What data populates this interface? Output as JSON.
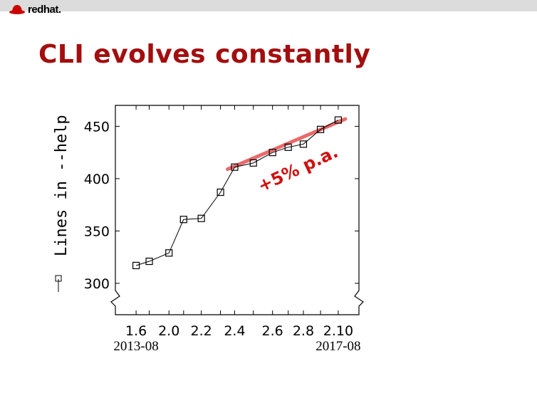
{
  "header": {
    "logo_text": "redhat."
  },
  "slide": {
    "title": "CLI evolves constantly"
  },
  "colors": {
    "title": "#a30e0e",
    "trend": "#e85a5a",
    "annotation": "#d01010"
  },
  "chart_data": {
    "type": "line",
    "ylabel": "Lines in --help",
    "xlim": [
      2013.26,
      2018.08
    ],
    "ylim": [
      270,
      470
    ],
    "yticks": [
      300,
      350,
      400,
      450
    ],
    "axis_break": "y-axis bottom",
    "grid": false,
    "legend": "in y-axis label",
    "x_ticks": [
      {
        "x": 2013.67,
        "label": "1.6"
      },
      {
        "x": 2013.93,
        "label": ""
      },
      {
        "x": 2014.32,
        "label": "2.0"
      },
      {
        "x": 2014.61,
        "label": ""
      },
      {
        "x": 2014.96,
        "label": "2.2"
      },
      {
        "x": 2015.34,
        "label": ""
      },
      {
        "x": 2015.62,
        "label": "2.4"
      },
      {
        "x": 2015.99,
        "label": ""
      },
      {
        "x": 2016.37,
        "label": "2.6"
      },
      {
        "x": 2016.68,
        "label": ""
      },
      {
        "x": 2016.98,
        "label": "2.8"
      },
      {
        "x": 2017.32,
        "label": ""
      },
      {
        "x": 2017.67,
        "label": "2.10"
      }
    ],
    "date_labels": [
      {
        "x": 2013.67,
        "label": "2013-08"
      },
      {
        "x": 2017.67,
        "label": "2017-08"
      }
    ],
    "series": [
      {
        "marker": "square",
        "x": [
          2013.67,
          2013.93,
          2014.32,
          2014.61,
          2014.96,
          2015.34,
          2015.62,
          2015.99,
          2016.37,
          2016.68,
          2016.98,
          2017.32,
          2017.67
        ],
        "y": [
          317,
          321,
          329,
          361,
          362,
          387,
          411,
          415,
          425,
          430,
          433,
          447,
          456
        ]
      }
    ],
    "trend": {
      "x": [
        2015.48,
        2017.81
      ],
      "y": [
        409,
        457
      ],
      "label": "+5% p.a."
    }
  }
}
